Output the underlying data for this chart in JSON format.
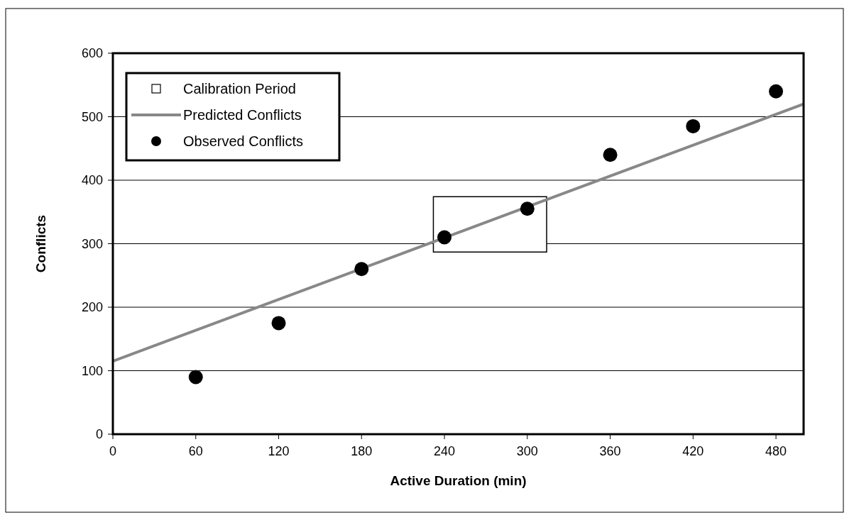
{
  "chart_data": {
    "type": "scatter",
    "xlabel": "Active Duration (min)",
    "ylabel": "Conflicts",
    "xlim": [
      0,
      500
    ],
    "xticks": [
      0,
      60,
      120,
      180,
      240,
      300,
      360,
      420,
      480
    ],
    "ylim": [
      0,
      600
    ],
    "yticks": [
      0,
      100,
      200,
      300,
      400,
      500,
      600
    ],
    "grid": "y",
    "legend": "top left",
    "series": [
      {
        "name": "Calibration Period",
        "type": "area",
        "color": "#ffffff",
        "x": [
          232,
          314,
          314,
          232,
          232
        ],
        "values": [
          287,
          287,
          374,
          374,
          287
        ]
      },
      {
        "name": "Predicted Conflicts",
        "type": "line",
        "color": "#888888",
        "marker": "none",
        "x": [
          0,
          500
        ],
        "values": [
          115,
          520
        ]
      },
      {
        "name": "Observed Conflicts",
        "color": "#000000",
        "marker": "circle",
        "x": [
          60,
          120,
          180,
          240,
          300,
          360,
          420,
          480
        ],
        "values": [
          90,
          175,
          260,
          310,
          355,
          440,
          485,
          540
        ]
      }
    ]
  }
}
